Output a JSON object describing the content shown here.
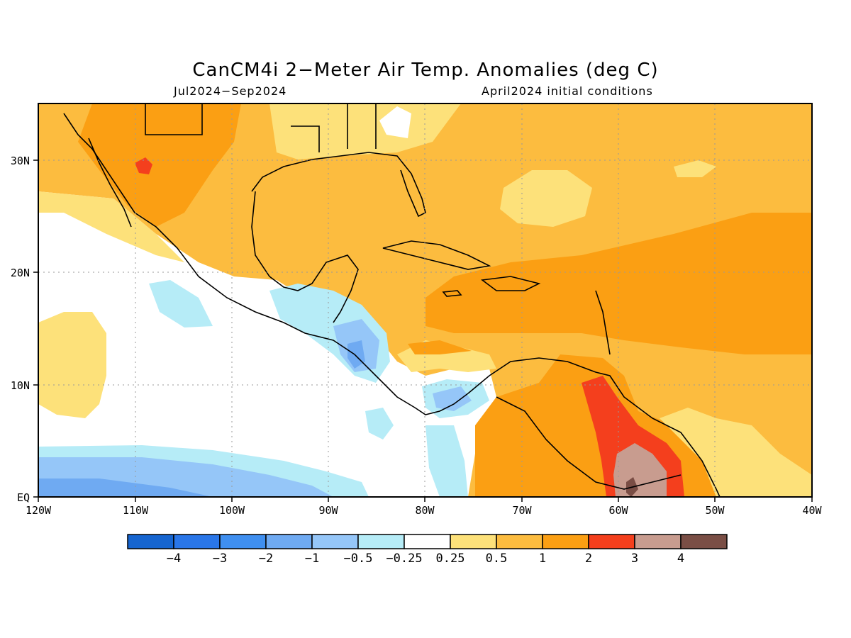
{
  "title": "CanCM4i 2−Meter Air Temp. Anomalies (deg C)",
  "period": "Jul2024−Sep2024",
  "init": "April2024 initial conditions",
  "lon_labels": [
    "120W",
    "110W",
    "100W",
    "90W",
    "80W",
    "70W",
    "60W",
    "50W",
    "40W"
  ],
  "lat_labels": [
    "EQ",
    "10N",
    "20N",
    "30N"
  ],
  "colorbar": {
    "labels": [
      "−4",
      "−3",
      "−2",
      "−1",
      "−0.5",
      "−0.25",
      "0.25",
      "0.5",
      "1",
      "2",
      "3",
      "4"
    ],
    "colors": [
      "#1665d0",
      "#2a76e8",
      "#3f8ff0",
      "#6faaf2",
      "#95c6f8",
      "#b6ecf7",
      "#ffffff",
      "#fde17a",
      "#fcbc3f",
      "#fb9f13",
      "#f43f1d",
      "#c89c8f",
      "#7a4e45"
    ]
  },
  "map_colors": {
    "neutral": "#ffffff",
    "warm_light": "#fde17a",
    "warm": "#fcbc3f",
    "warm_strong": "#fb9f13",
    "hot": "#f43f1d",
    "hotter": "#c89c8f",
    "hottest": "#7a4e45",
    "cool_light": "#b6ecf7",
    "cool": "#95c6f8",
    "cool_strong": "#6faaf2"
  }
}
